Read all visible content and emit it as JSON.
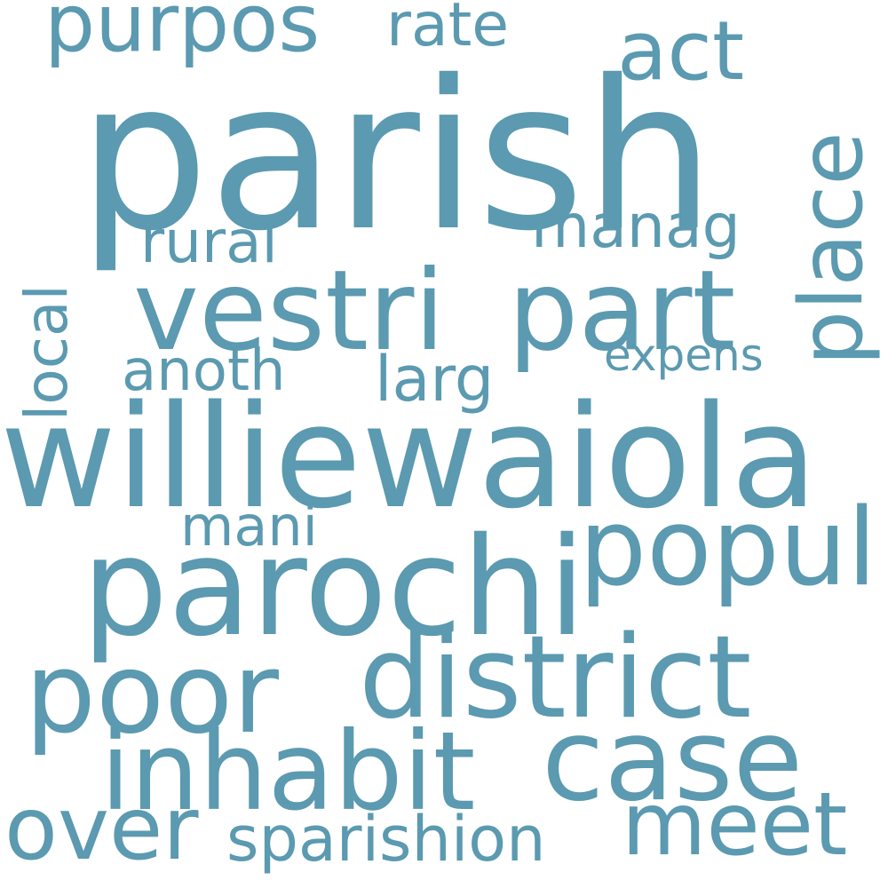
{
  "color": "#5b9ab0",
  "words": [
    {
      "text": "parish"
    },
    {
      "text": "williewaiola"
    },
    {
      "text": "parochi"
    },
    {
      "text": "vestri"
    },
    {
      "text": "part"
    },
    {
      "text": "district"
    },
    {
      "text": "inhabit"
    },
    {
      "text": "case"
    },
    {
      "text": "poor"
    },
    {
      "text": "popul"
    },
    {
      "text": "place"
    },
    {
      "text": "over"
    },
    {
      "text": "meet"
    },
    {
      "text": "purpos"
    },
    {
      "text": "act"
    },
    {
      "text": "sparishion"
    },
    {
      "text": "rate"
    },
    {
      "text": "manag"
    },
    {
      "text": "rural"
    },
    {
      "text": "anoth"
    },
    {
      "text": "larg"
    },
    {
      "text": "local"
    },
    {
      "text": "mani"
    },
    {
      "text": "expens"
    }
  ]
}
